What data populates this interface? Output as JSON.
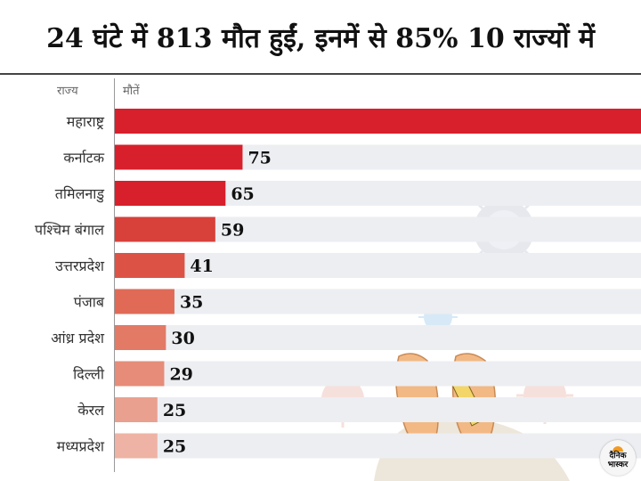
{
  "title": "24 घंटे में 813 मौत हुईं, इनमें से 85% 10 राज्यों में",
  "brand": {
    "logo_line1": "दैनिक",
    "logo_line2": "भास्कर"
  },
  "chart_data": {
    "type": "bar",
    "orientation": "horizontal",
    "category_header": "राज्य",
    "value_header": "मौतें",
    "categories": [
      "महाराष्ट्र",
      "कर्नाटक",
      "तमिलनाडु",
      "पश्चिम बंगाल",
      "उत्तरप्रदेश",
      "पंजाब",
      "आंध्र प्रदेश",
      "दिल्ली",
      "केरल",
      "मध्यप्रदेश"
    ],
    "values": [
      309,
      75,
      65,
      59,
      41,
      35,
      30,
      29,
      25,
      25
    ],
    "bar_colors": [
      "#d7202b",
      "#d7202b",
      "#d7202b",
      "#d8403a",
      "#dc5345",
      "#e06a55",
      "#e37a66",
      "#e68c78",
      "#eaa08f",
      "#eeb3a4"
    ],
    "xlim": [
      0,
      309
    ],
    "grid": false,
    "legend": "none"
  }
}
